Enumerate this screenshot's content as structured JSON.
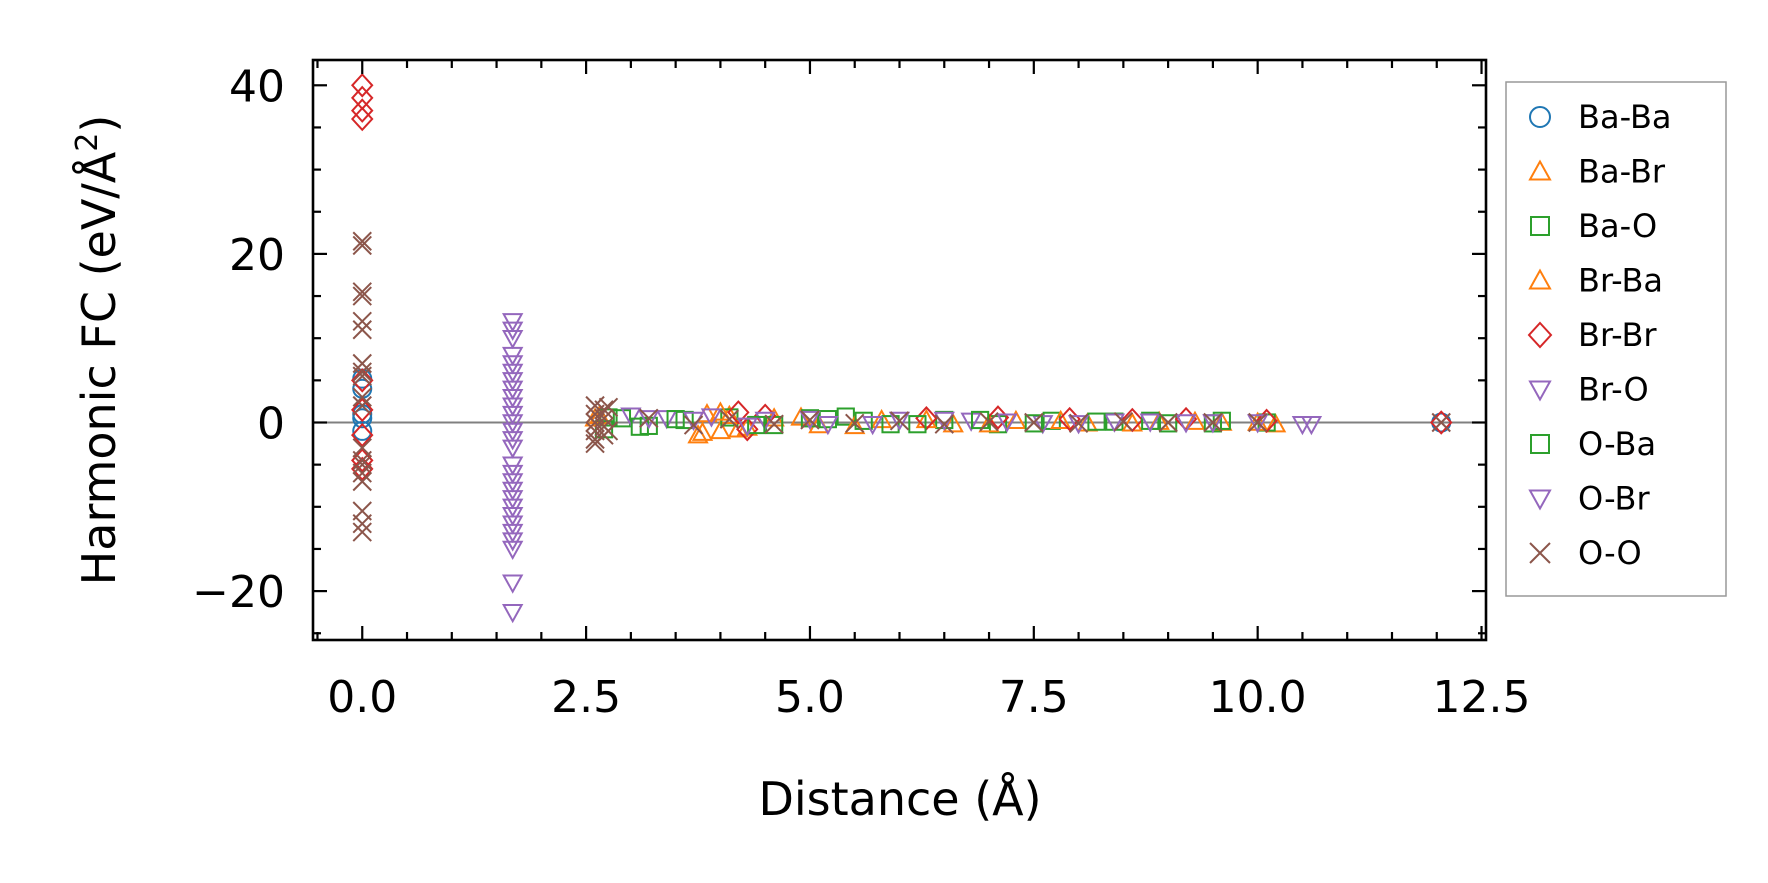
{
  "chart_data": {
    "type": "scatter",
    "title": "",
    "xlabel": "Distance (Å)",
    "ylabel": "Harmonic FC (eV/Å",
    "ylabel_superscript": "2",
    "ylabel_suffix": ")",
    "xlim": [
      -0.55,
      12.55
    ],
    "ylim": [
      -25.8,
      43.0
    ],
    "xticks": [
      0.0,
      2.5,
      5.0,
      7.5,
      10.0,
      12.5
    ],
    "xtick_labels": [
      "0.0",
      "2.5",
      "5.0",
      "7.5",
      "10.0",
      "12.5"
    ],
    "yticks": [
      -20,
      0,
      20,
      40
    ],
    "ytick_labels": [
      "−20",
      "0",
      "20",
      "40"
    ],
    "zero_line": 0,
    "grid": false,
    "legend_position": "right-outside",
    "series": [
      {
        "name": "Ba-Ba",
        "marker": "circle",
        "color": "#1f77b4",
        "x": [
          0,
          0,
          0,
          0,
          0,
          12.05
        ],
        "y": [
          5.2,
          4.0,
          1.0,
          0.5,
          -1.0,
          0
        ]
      },
      {
        "name": "Ba-Br",
        "marker": "triangle-up",
        "color": "#ff7f0e",
        "x": [
          2.65,
          3.75,
          3.85,
          4.0,
          4.1,
          4.3,
          4.6,
          5.1,
          5.8,
          6.6,
          7.3,
          8.1,
          8.9,
          9.6,
          10.2
        ],
        "y": [
          0.8,
          -1.5,
          1.0,
          -1.0,
          0.8,
          -0.6,
          0.5,
          -0.3,
          0.3,
          -0.2,
          0.2,
          -0.1,
          0.1,
          0.0,
          -0.2
        ]
      },
      {
        "name": "Ba-O",
        "marker": "square",
        "color": "#2ca02c",
        "x": [
          2.7,
          2.9,
          3.2,
          3.6,
          4.1,
          4.6,
          5.2,
          5.4,
          5.9,
          6.5,
          7.1,
          7.7,
          8.4,
          9.0,
          9.6,
          10.1
        ],
        "y": [
          -0.8,
          0.5,
          -0.4,
          0.3,
          0.6,
          -0.3,
          0.4,
          0.7,
          -0.2,
          0.3,
          -0.2,
          0.2,
          0.1,
          -0.1,
          0.2,
          0.0
        ]
      },
      {
        "name": "Br-Ba",
        "marker": "triangle-up",
        "color": "#ff7f0e",
        "x": [
          2.6,
          3.8,
          4.0,
          4.2,
          4.9,
          5.5,
          6.3,
          7.0,
          7.8,
          8.6,
          9.3,
          10.0
        ],
        "y": [
          0.5,
          -1.2,
          1.2,
          -0.8,
          0.6,
          -0.4,
          0.3,
          -0.2,
          0.2,
          -0.1,
          0.1,
          0.0
        ]
      },
      {
        "name": "Br-Br",
        "marker": "diamond",
        "color": "#d62728",
        "x": [
          0,
          0,
          0,
          0,
          0,
          0,
          0,
          0,
          0,
          4.2,
          4.3,
          4.5,
          6.3,
          7.1,
          7.9,
          8.6,
          9.2,
          10.1,
          12.05
        ],
        "y": [
          40,
          38.5,
          37,
          36,
          5,
          1.5,
          -1.5,
          -4.5,
          -5.5,
          1.2,
          -0.8,
          0.8,
          0.5,
          0.6,
          0.4,
          0.3,
          0.4,
          0.2,
          0
        ]
      },
      {
        "name": "Br-O",
        "marker": "triangle-down",
        "color": "#9467bd",
        "x": [
          1.68,
          1.68,
          1.68,
          1.68,
          1.68,
          1.68,
          1.68,
          1.68,
          1.68,
          1.68,
          1.68,
          1.68,
          1.68,
          1.68,
          1.68,
          1.68,
          3.0,
          3.4,
          3.9,
          4.5,
          5.2,
          6.0,
          6.8,
          7.6,
          8.4,
          9.2,
          10.0,
          10.5,
          10.6
        ],
        "y": [
          12,
          11,
          10,
          8,
          7,
          5,
          4,
          3,
          2,
          1,
          0,
          -1,
          -2,
          -3,
          -5,
          -6,
          0.8,
          0.5,
          0.7,
          0.3,
          -0.2,
          0.3,
          0.2,
          -0.1,
          0.1,
          0.0,
          0.0,
          -0.2,
          -0.2
        ]
      },
      {
        "name": "O-Ba",
        "marker": "square",
        "color": "#2ca02c",
        "x": [
          2.75,
          3.1,
          3.5,
          4.4,
          5.0,
          5.6,
          6.2,
          6.9,
          7.5,
          8.2,
          8.8,
          9.5
        ],
        "y": [
          0.6,
          -0.5,
          0.4,
          -0.3,
          0.5,
          0.2,
          -0.2,
          0.3,
          -0.1,
          0.1,
          0.2,
          -0.1
        ]
      },
      {
        "name": "O-Br",
        "marker": "triangle-down",
        "color": "#9467bd",
        "x": [
          1.68,
          1.68,
          1.68,
          1.68,
          1.68,
          1.68,
          1.68,
          1.68,
          1.68,
          1.68,
          1.68,
          1.68,
          3.2,
          3.7,
          4.3,
          5.0,
          5.7,
          6.5,
          7.2,
          8.0,
          8.8,
          9.5
        ],
        "y": [
          -7,
          -8,
          -9,
          -10,
          -11,
          -12,
          -13,
          -14,
          -15,
          -19,
          -22.5,
          6,
          0.5,
          0.3,
          -0.4,
          0.4,
          -0.2,
          0.3,
          0.1,
          -0.1,
          0.1,
          0.0
        ]
      },
      {
        "name": "O-O",
        "marker": "x",
        "color": "#8c564b",
        "x": [
          0,
          0,
          0,
          0,
          0,
          0,
          0,
          0,
          0,
          0,
          0,
          0,
          0,
          0,
          0,
          0,
          0,
          0,
          0,
          2.6,
          2.6,
          2.6,
          2.6,
          2.6,
          2.6,
          2.7,
          2.7,
          2.7,
          2.7,
          2.75,
          2.75,
          3.2,
          3.7,
          4.1,
          4.6,
          5.0,
          5.5,
          6.0,
          6.5,
          7.0,
          7.5,
          8.0,
          8.5,
          9.0,
          9.5,
          10.0,
          12.05
        ],
        "y": [
          21.5,
          21,
          15.5,
          15,
          12,
          11,
          7,
          6,
          5.5,
          3,
          2,
          -3,
          -4.5,
          -5,
          -6,
          -7,
          -10.5,
          -12,
          -13,
          2,
          1,
          0,
          -1,
          -2,
          -2.5,
          1.5,
          0.5,
          -0.5,
          -1.5,
          1.8,
          -1.0,
          0.5,
          -0.3,
          0.4,
          -0.2,
          0.3,
          -0.1,
          0.2,
          -0.2,
          0.1,
          0.0,
          -0.1,
          0.1,
          0.0,
          0.0,
          0.0,
          0
        ]
      }
    ]
  }
}
